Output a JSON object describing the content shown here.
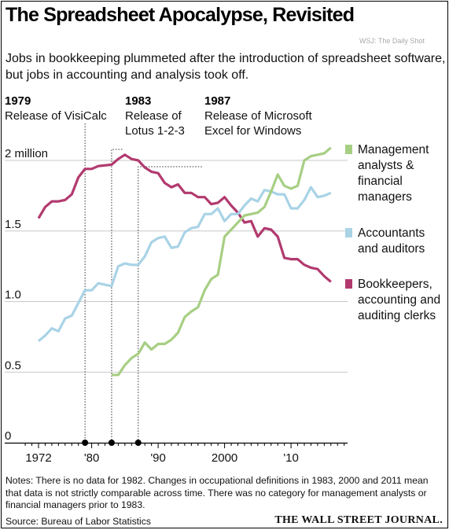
{
  "title": "The Spreadsheet Apocalypse, Revisited",
  "watermark": "WSJ: The Daily Shot",
  "subtitle": "Jobs in bookkeeping plummeted after the introduction of spreadsheet software, but jobs in accounting and analysis took off.",
  "notes": "Notes: There is no data for 1982. Changes in occupational definitions in 1983, 2000 and 2011 mean that data is not strictly comparable across time. There was no category for management analysts or financial managers prior to 1983.",
  "source": "Source: Bureau of Labor Statistics",
  "publisher": "THE WALL STREET JOURNAL.",
  "colors": {
    "management": "#a7cf84",
    "accountants": "#a9d3e6",
    "bookkeepers": "#b23a6f",
    "grid": "#c8c8c8",
    "axis": "#000000"
  },
  "chart_data": {
    "type": "line",
    "ylim": [
      0,
      2.1
    ],
    "xlim": [
      1970,
      2018
    ],
    "y_ticks": [
      {
        "value": 0,
        "label": "0"
      },
      {
        "value": 0.5,
        "label": "0.5"
      },
      {
        "value": 1.0,
        "label": "1.0"
      },
      {
        "value": 1.5,
        "label": "1.5"
      },
      {
        "value": 2.0,
        "label": "2 million"
      }
    ],
    "x_ticks": [
      {
        "value": 1972,
        "label": "1972"
      },
      {
        "value": 1980,
        "label": "'80"
      },
      {
        "value": 1990,
        "label": "'90"
      },
      {
        "value": 2000,
        "label": "2000"
      },
      {
        "value": 2010,
        "label": "'10"
      }
    ],
    "events": [
      {
        "year": 1979,
        "year_label": "1979",
        "label_lines": [
          "Release of VisiCalc"
        ]
      },
      {
        "year": 1983,
        "year_label": "1983",
        "label_lines": [
          "Release of",
          "Lotus 1-2-3"
        ]
      },
      {
        "year": 1987,
        "year_label": "1987",
        "label_lines": [
          "Release of Microsoft",
          "Excel for Windows"
        ]
      }
    ],
    "series": [
      {
        "name": "Bookkeepers, accounting and auditing clerks",
        "legend_lines": [
          "Bookkeepers,",
          "accounting and",
          "auditing clerks"
        ],
        "color_key": "bookkeepers",
        "x": [
          1972,
          1973,
          1974,
          1975,
          1976,
          1977,
          1978,
          1979,
          1980,
          1981,
          1983,
          1984,
          1985,
          1986,
          1987,
          1988,
          1989,
          1990,
          1991,
          1992,
          1993,
          1994,
          1995,
          1996,
          1997,
          1998,
          1999,
          2000,
          2001,
          2002,
          2003,
          2004,
          2005,
          2006,
          2007,
          2008,
          2009,
          2010,
          2011,
          2012,
          2013,
          2014,
          2015,
          2016
        ],
        "y": [
          1.59,
          1.67,
          1.71,
          1.71,
          1.72,
          1.76,
          1.88,
          1.94,
          1.94,
          1.96,
          1.97,
          2.01,
          2.04,
          2.01,
          2.0,
          1.95,
          1.92,
          1.91,
          1.84,
          1.81,
          1.83,
          1.77,
          1.77,
          1.74,
          1.74,
          1.69,
          1.7,
          1.74,
          1.68,
          1.63,
          1.56,
          1.57,
          1.46,
          1.52,
          1.51,
          1.46,
          1.31,
          1.3,
          1.3,
          1.26,
          1.24,
          1.23,
          1.18,
          1.14
        ]
      },
      {
        "name": "Accountants and auditors",
        "legend_lines": [
          "Accountants",
          "and auditors"
        ],
        "color_key": "accountants",
        "x": [
          1972,
          1973,
          1974,
          1975,
          1976,
          1977,
          1978,
          1979,
          1980,
          1981,
          1983,
          1984,
          1985,
          1986,
          1987,
          1988,
          1989,
          1990,
          1991,
          1992,
          1993,
          1994,
          1995,
          1996,
          1997,
          1998,
          1999,
          2000,
          2001,
          2002,
          2003,
          2004,
          2005,
          2006,
          2007,
          2008,
          2009,
          2010,
          2011,
          2012,
          2013,
          2014,
          2015,
          2016
        ],
        "y": [
          0.72,
          0.76,
          0.81,
          0.79,
          0.88,
          0.9,
          0.99,
          1.08,
          1.08,
          1.13,
          1.11,
          1.25,
          1.27,
          1.26,
          1.26,
          1.32,
          1.42,
          1.45,
          1.46,
          1.38,
          1.39,
          1.49,
          1.52,
          1.53,
          1.62,
          1.62,
          1.66,
          1.57,
          1.62,
          1.62,
          1.68,
          1.73,
          1.71,
          1.79,
          1.78,
          1.76,
          1.76,
          1.66,
          1.66,
          1.72,
          1.81,
          1.74,
          1.75,
          1.77
        ]
      },
      {
        "name": "Management analysts & financial managers",
        "legend_lines": [
          "Management",
          "analysts &",
          "financial",
          "managers"
        ],
        "color_key": "management",
        "x": [
          1983,
          1984,
          1985,
          1986,
          1987,
          1988,
          1989,
          1990,
          1991,
          1992,
          1993,
          1994,
          1995,
          1996,
          1997,
          1998,
          1999,
          2000,
          2001,
          2002,
          2003,
          2004,
          2005,
          2006,
          2007,
          2008,
          2009,
          2010,
          2011,
          2012,
          2013,
          2014,
          2015,
          2016
        ],
        "y": [
          0.48,
          0.48,
          0.55,
          0.6,
          0.63,
          0.71,
          0.66,
          0.7,
          0.7,
          0.73,
          0.78,
          0.89,
          0.93,
          0.96,
          1.08,
          1.16,
          1.19,
          1.46,
          1.51,
          1.56,
          1.61,
          1.62,
          1.63,
          1.67,
          1.78,
          1.9,
          1.82,
          1.8,
          1.82,
          2.0,
          2.03,
          2.04,
          2.05,
          2.09
        ]
      }
    ]
  }
}
